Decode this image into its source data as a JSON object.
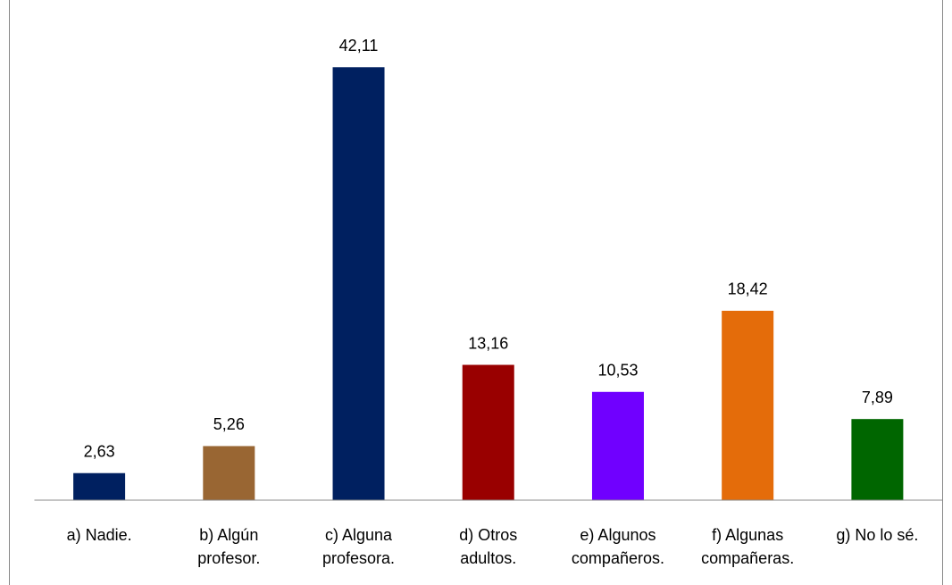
{
  "chart_data": {
    "type": "bar",
    "categories": [
      [
        "a) Nadie."
      ],
      [
        "b) Algún",
        "profesor."
      ],
      [
        "c) Alguna",
        "profesora."
      ],
      [
        "d) Otros",
        "adultos."
      ],
      [
        "e) Algunos",
        "compañeros."
      ],
      [
        "f) Algunas",
        "compañeras."
      ],
      [
        "g) No lo sé."
      ]
    ],
    "values": [
      2.63,
      5.26,
      42.11,
      13.16,
      10.53,
      18.42,
      7.89
    ],
    "value_labels": [
      "2,63",
      "5,26",
      "42,11",
      "13,16",
      "10,53",
      "18,42",
      "7,89"
    ],
    "colors": [
      "#002060",
      "#996633",
      "#002060",
      "#990000",
      "#7000ff",
      "#e46c0a",
      "#006600"
    ],
    "ylim": [
      0,
      45
    ]
  }
}
